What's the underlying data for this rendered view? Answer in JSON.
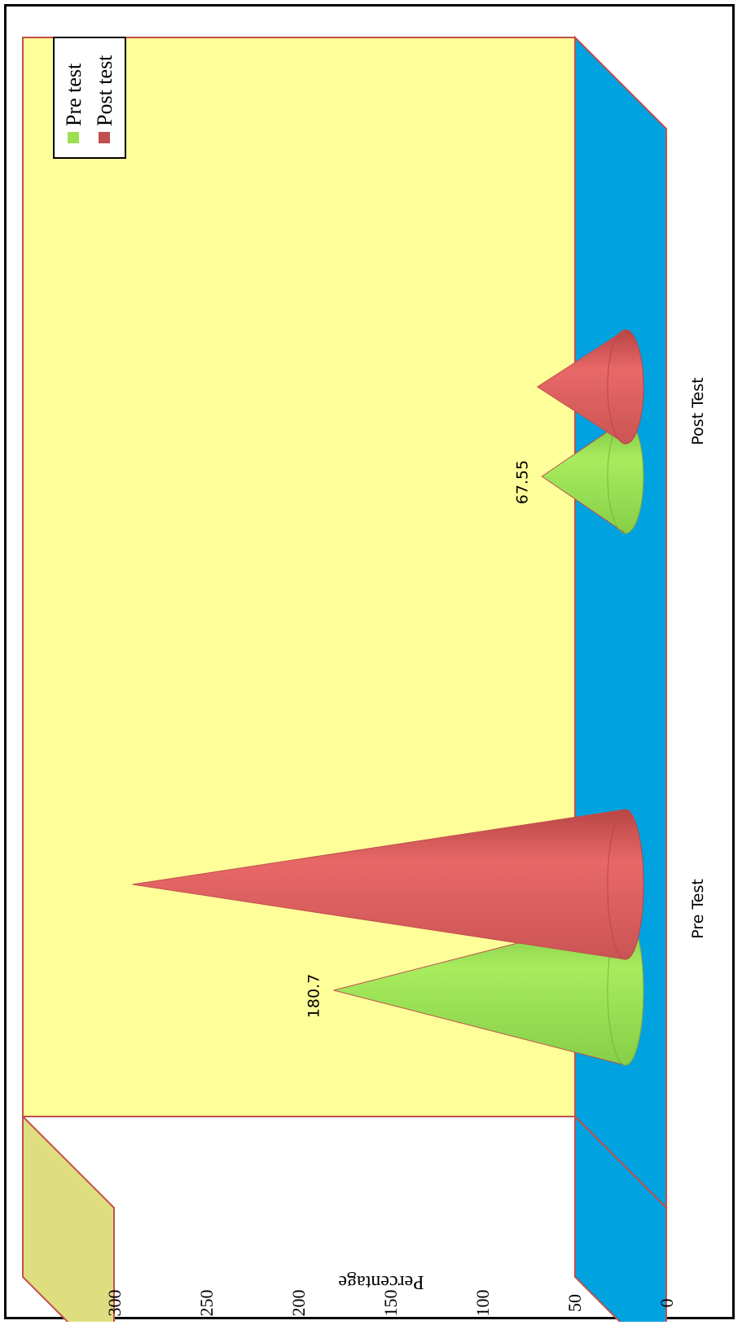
{
  "chart_data": {
    "type": "bar",
    "bar_shape": "cone",
    "orientation": "rotated-90-clockwise",
    "categories": [
      "Pre Test",
      "Post Test"
    ],
    "series": [
      {
        "name": "Pre test",
        "values": [
          180.7,
          67.55
        ],
        "data_labels": [
          "180.7",
          "67.55"
        ]
      },
      {
        "name": "Post test",
        "values": [
          290,
          70
        ],
        "data_labels": [
          "",
          ""
        ]
      }
    ],
    "ylabel": "Percentage",
    "xlabel": "",
    "title": "",
    "yticks": [
      "0",
      "50",
      "100",
      "150",
      "200",
      "250",
      "300"
    ],
    "ylim": [
      0,
      300
    ],
    "legend_position": "top-right",
    "colors": {
      "pre": "#9be04f",
      "post": "#e06060",
      "back_wall": "#ffff99",
      "side_wall": "#dede80",
      "floor": "#00a2e0",
      "wall_edge": "#c0504d"
    }
  }
}
